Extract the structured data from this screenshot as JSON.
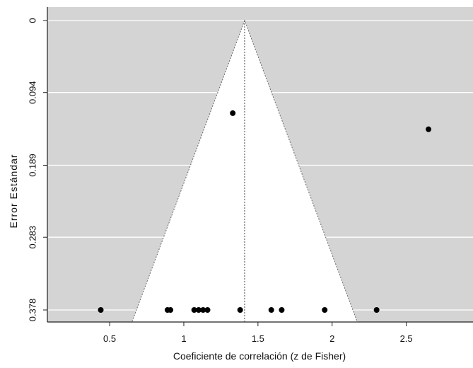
{
  "chart_data": {
    "type": "scatter",
    "subtype": "funnel-plot",
    "title": "",
    "xlabel": "Coeficiente de correlación (z de Fisher)",
    "ylabel": "Error Estándar",
    "xlim": [
      0.08,
      2.95
    ],
    "ylim": [
      0.378,
      0.0
    ],
    "y_axis_inverted": true,
    "grid": "horizontal",
    "background_color": "#d4d4d4",
    "funnel_fill_color": "#ffffff",
    "point_color": "#000000",
    "x_ticks": [
      0.5,
      1,
      1.5,
      2,
      2.5
    ],
    "x_tick_labels": [
      "0.5",
      "1",
      "1.5",
      "2",
      "2.5"
    ],
    "y_ticks": [
      0,
      0.094,
      0.189,
      0.283,
      0.378
    ],
    "y_tick_labels": [
      "0",
      "0.094",
      "0.189",
      "0.283",
      "0.378"
    ],
    "summary_effect": 1.41,
    "funnel": {
      "apex": [
        1.41,
        0.0
      ],
      "base_left": [
        0.65,
        0.378
      ],
      "base_right": [
        2.17,
        0.378
      ]
    },
    "points": [
      {
        "x": 1.33,
        "y": 0.121
      },
      {
        "x": 2.65,
        "y": 0.142
      },
      {
        "x": 0.44,
        "y": 0.378
      },
      {
        "x": 0.89,
        "y": 0.378
      },
      {
        "x": 0.91,
        "y": 0.378
      },
      {
        "x": 1.07,
        "y": 0.378
      },
      {
        "x": 1.1,
        "y": 0.378
      },
      {
        "x": 1.13,
        "y": 0.378
      },
      {
        "x": 1.16,
        "y": 0.378
      },
      {
        "x": 1.38,
        "y": 0.378
      },
      {
        "x": 1.59,
        "y": 0.378
      },
      {
        "x": 1.66,
        "y": 0.378
      },
      {
        "x": 1.95,
        "y": 0.378
      },
      {
        "x": 2.3,
        "y": 0.378
      }
    ]
  }
}
